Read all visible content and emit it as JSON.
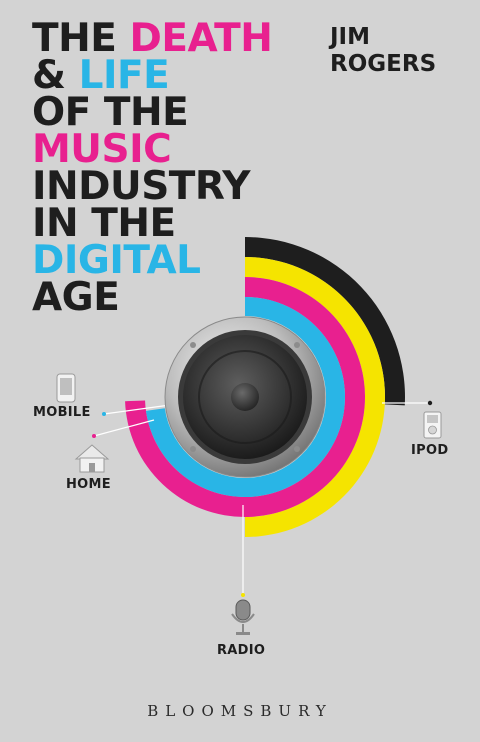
{
  "title_lines": [
    [
      {
        "text": "THE ",
        "color": "#1e1e1e"
      },
      {
        "text": "DEATH",
        "color": "#e8208f"
      }
    ],
    [
      {
        "text": "& ",
        "color": "#1e1e1e"
      },
      {
        "text": "LIFE",
        "color": "#29b5e6"
      }
    ],
    [
      {
        "text": "OF THE",
        "color": "#1e1e1e"
      }
    ],
    [
      {
        "text": "MUSIC",
        "color": "#e8208f"
      }
    ],
    [
      {
        "text": "INDUSTRY",
        "color": "#1e1e1e"
      }
    ],
    [
      {
        "text": "IN THE",
        "color": "#1e1e1e"
      }
    ],
    [
      {
        "text": "DIGITAL",
        "color": "#29b5e6"
      }
    ],
    [
      {
        "text": "AGE",
        "color": "#1e1e1e"
      }
    ]
  ],
  "author": {
    "first": "JIM",
    "last": "ROGERS"
  },
  "devices": {
    "mobile": "MOBILE",
    "home": "HOME",
    "ipod": "IPOD",
    "radio": "RADIO"
  },
  "icons": {
    "mobile": "mobile-phone-icon",
    "home": "house-icon",
    "ipod": "ipod-icon",
    "radio": "microphone-icon",
    "speaker": "speaker-icon"
  },
  "colors": {
    "black": "#1e1e1e",
    "yellow": "#f5e400",
    "magenta": "#e8208f",
    "cyan": "#29b5e6",
    "background": "#d3d3d3"
  },
  "publisher": "BLOOMSBURY"
}
